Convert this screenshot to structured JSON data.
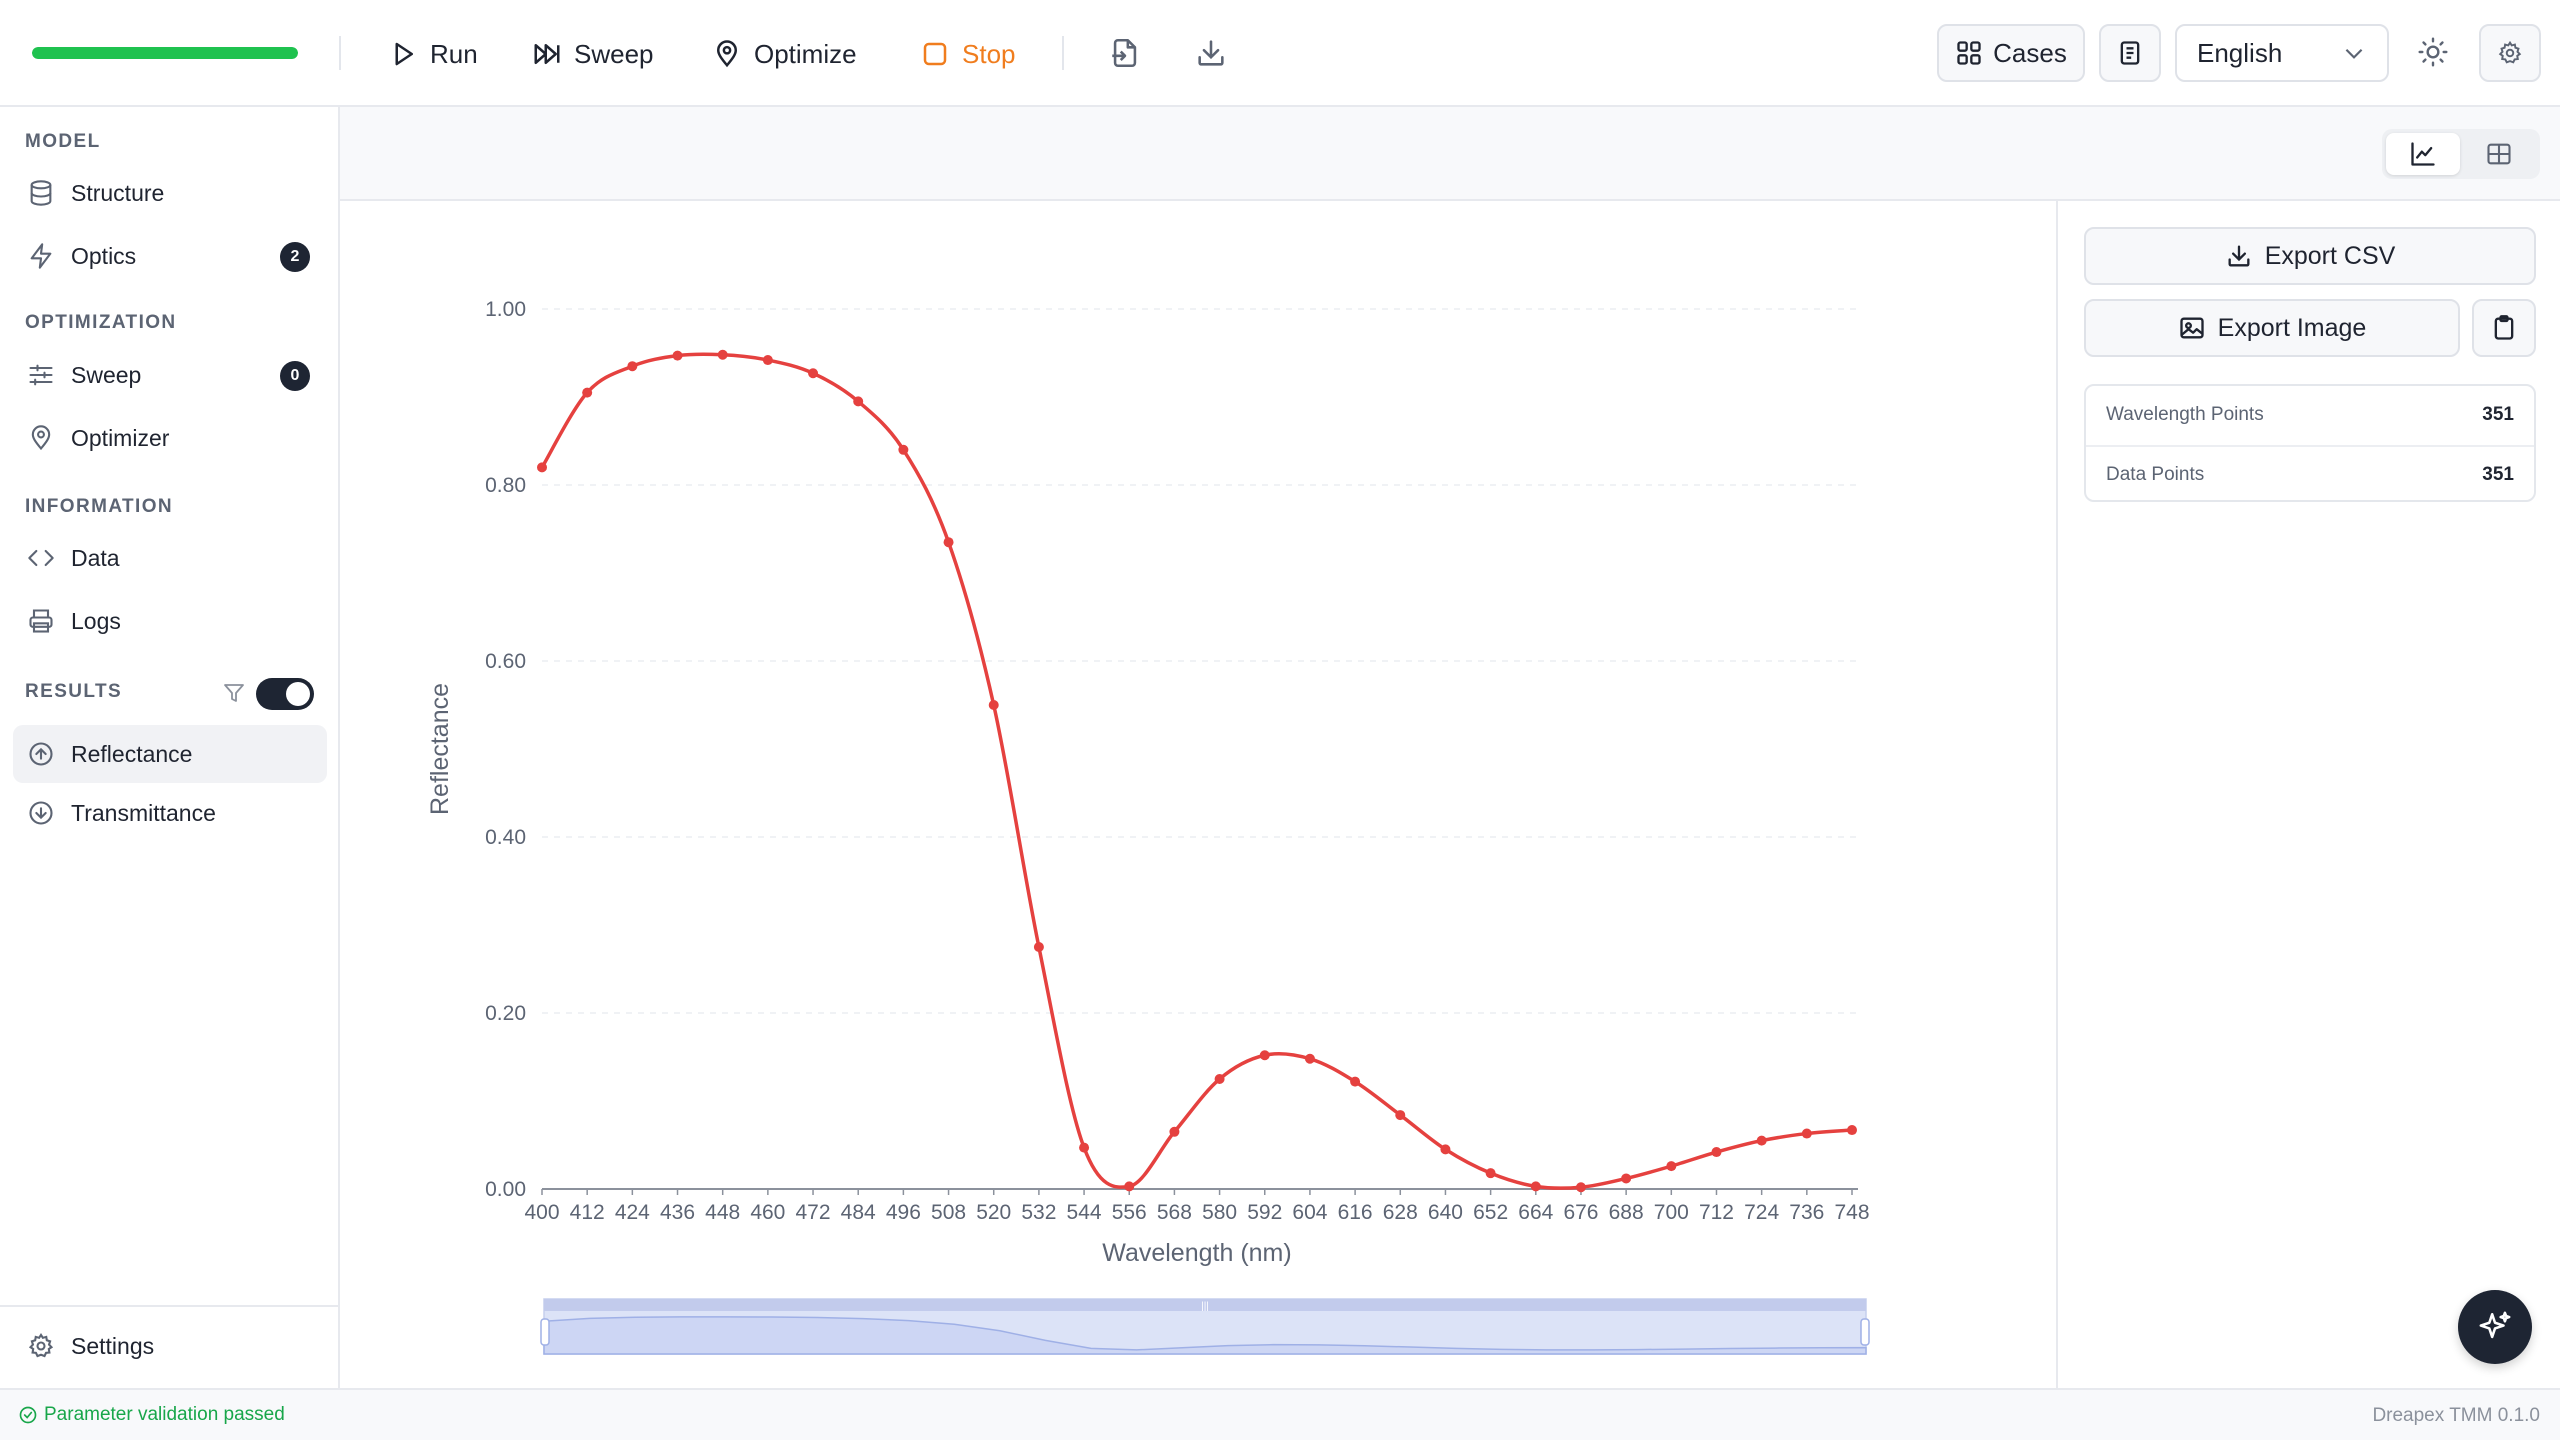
{
  "toolbar": {
    "progress": 1.0,
    "run_label": "Run",
    "sweep_label": "Sweep",
    "optimize_label": "Optimize",
    "stop_label": "Stop",
    "cases_label": "Cases",
    "language": "English"
  },
  "sidebar": {
    "sections": {
      "model": "MODEL",
      "optimization": "OPTIMIZATION",
      "information": "INFORMATION",
      "results": "RESULTS"
    },
    "items": {
      "structure": "Structure",
      "optics": "Optics",
      "optics_badge": "2",
      "sweep": "Sweep",
      "sweep_badge": "0",
      "optimizer": "Optimizer",
      "data": "Data",
      "logs": "Logs",
      "reflectance": "Reflectance",
      "transmittance": "Transmittance",
      "settings": "Settings"
    },
    "results_toggle_on": true
  },
  "panel": {
    "export_csv": "Export CSV",
    "export_image": "Export Image",
    "wavelength_points_label": "Wavelength Points",
    "wavelength_points_value": "351",
    "data_points_label": "Data Points",
    "data_points_value": "351"
  },
  "status": {
    "message": "Parameter validation passed",
    "version": "Dreapex TMM 0.1.0"
  },
  "colors": {
    "series": "#e5413f",
    "accent_dark": "#1e2533",
    "progress": "#1fc24f",
    "stop": "#f07d1e",
    "ok": "#18a64a"
  },
  "chart_data": {
    "type": "line",
    "xlabel": "Wavelength (nm)",
    "ylabel": "Reflectance",
    "xlim": [
      400,
      748
    ],
    "ylim": [
      0,
      1.0
    ],
    "y_ticks": [
      "0.00",
      "0.20",
      "0.40",
      "0.60",
      "0.80",
      "1.00"
    ],
    "x_ticks": [
      400,
      412,
      424,
      436,
      448,
      460,
      472,
      484,
      496,
      508,
      520,
      532,
      544,
      556,
      568,
      580,
      592,
      604,
      616,
      628,
      640,
      652,
      664,
      676,
      688,
      700,
      712,
      724,
      736,
      748
    ],
    "grid": true,
    "series": [
      {
        "x": [
          400,
          412,
          424,
          436,
          448,
          460,
          472,
          484,
          496,
          508,
          520,
          532,
          544,
          556,
          568,
          580,
          592,
          604,
          616,
          628,
          640,
          652,
          664,
          676,
          688,
          700,
          712,
          724,
          736,
          748
        ],
        "values": [
          0.82,
          0.905,
          0.935,
          0.947,
          0.948,
          0.942,
          0.927,
          0.895,
          0.84,
          0.735,
          0.55,
          0.275,
          0.047,
          0.003,
          0.065,
          0.125,
          0.152,
          0.148,
          0.122,
          0.084,
          0.045,
          0.018,
          0.003,
          0.002,
          0.012,
          0.026,
          0.042,
          0.055,
          0.063,
          0.067
        ]
      }
    ]
  }
}
